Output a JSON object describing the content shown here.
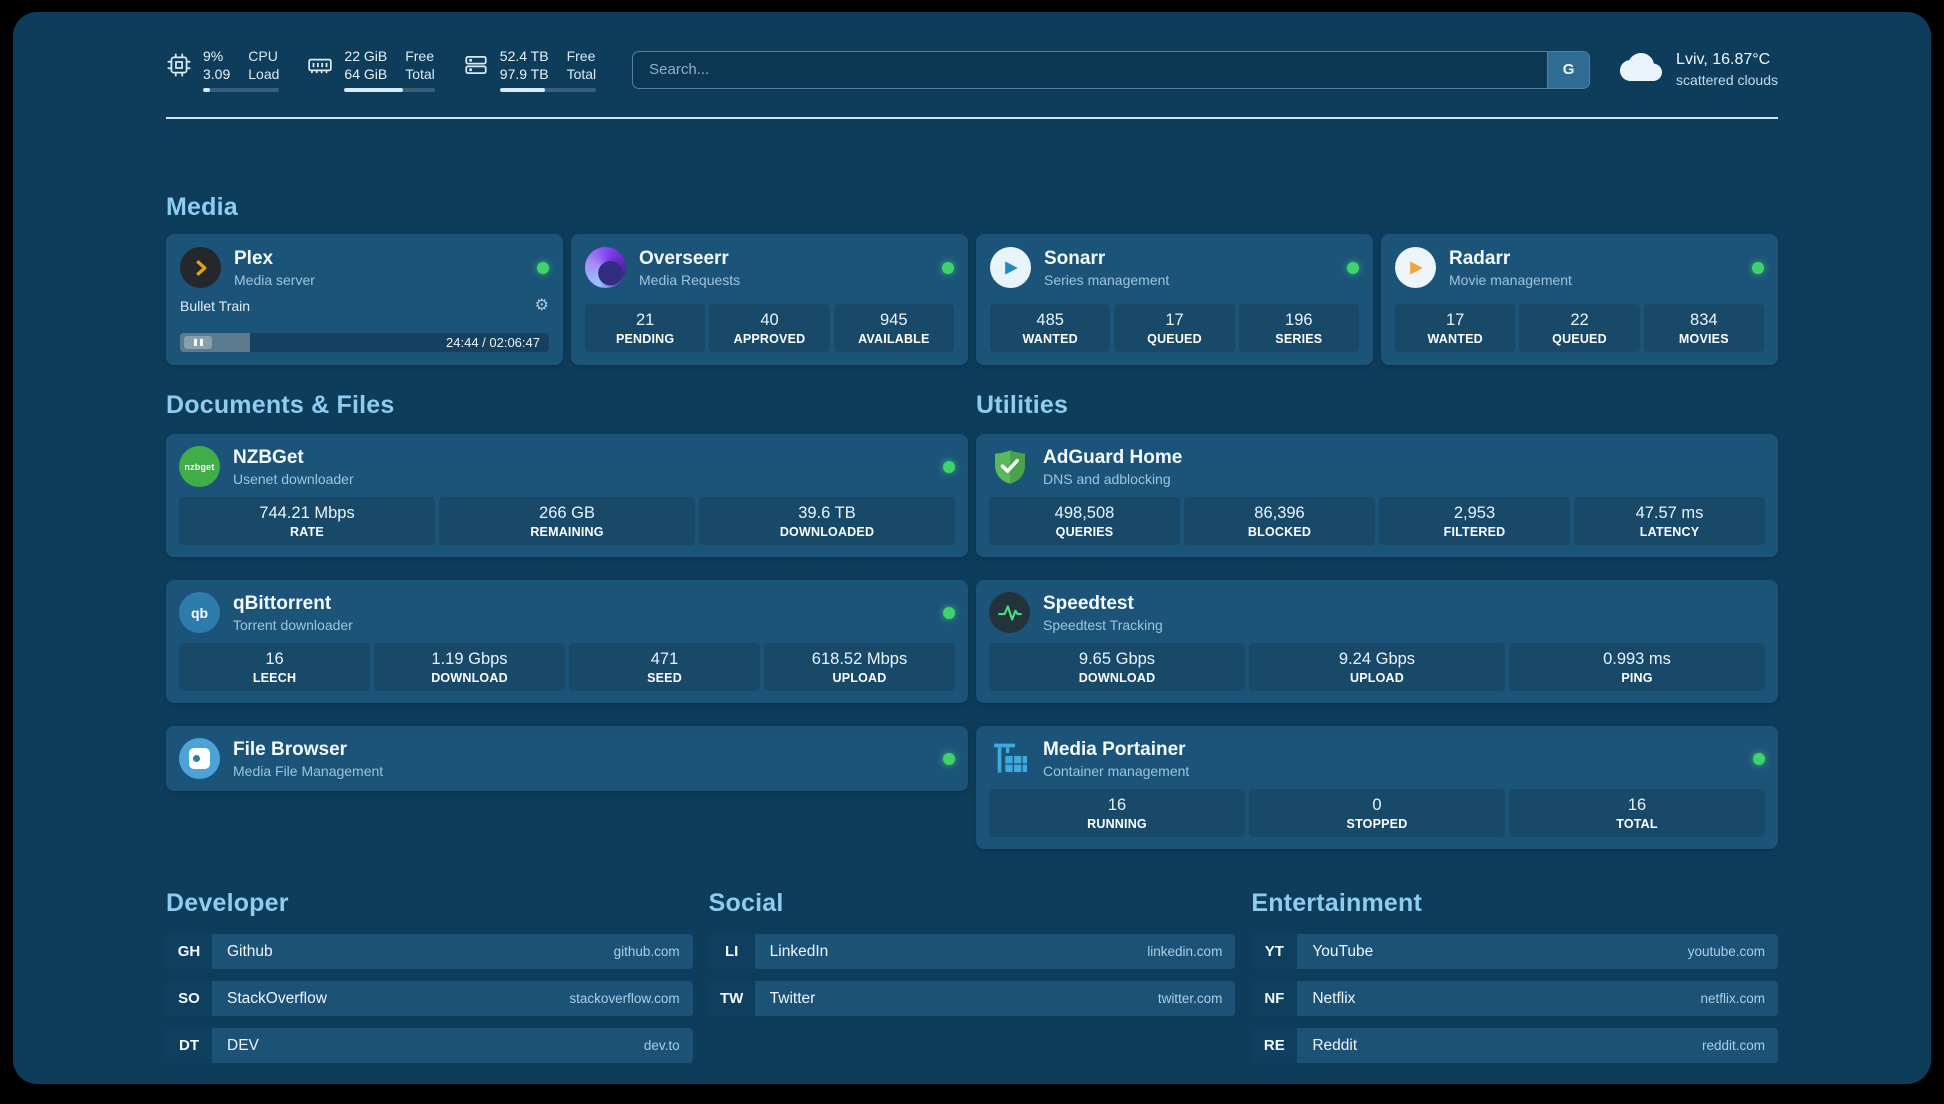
{
  "colors": {
    "background": "#0e3d5b",
    "card": "#1c5479",
    "accent": "#8ecdf0",
    "status_ok": "#3fd36c"
  },
  "topbar": {
    "stats": [
      {
        "icon": "cpu-icon",
        "value_a": "9%",
        "label_a": "CPU",
        "value_b": "3.09",
        "label_b": "Load",
        "progress_pct": 9
      },
      {
        "icon": "memory-icon",
        "value_a": "22 GiB",
        "label_a": "Free",
        "value_b": "64 GiB",
        "label_b": "Total",
        "progress_pct": 65
      },
      {
        "icon": "disk-icon",
        "value_a": "52.4 TB",
        "label_a": "Free",
        "value_b": "97.9 TB",
        "label_b": "Total",
        "progress_pct": 47
      }
    ],
    "search": {
      "placeholder": "Search...",
      "engine_button": "G"
    },
    "weather": {
      "icon": "cloud-icon",
      "location": "Lviv, 16.87°C",
      "condition": "scattered clouds"
    }
  },
  "media": {
    "heading": "Media",
    "plex": {
      "icon": "plex-icon",
      "title": "Plex",
      "subtitle": "Media server",
      "now_playing": "Bullet Train",
      "time": "24:44 / 02:06:47",
      "progress_pct": 19
    },
    "overseerr": {
      "icon": "overseerr-icon",
      "title": "Overseerr",
      "subtitle": "Media Requests",
      "stats": [
        {
          "value": "21",
          "label": "PENDING"
        },
        {
          "value": "40",
          "label": "APPROVED"
        },
        {
          "value": "945",
          "label": "AVAILABLE"
        }
      ]
    },
    "sonarr": {
      "icon": "sonarr-icon",
      "title": "Sonarr",
      "subtitle": "Series management",
      "stats": [
        {
          "value": "485",
          "label": "WANTED"
        },
        {
          "value": "17",
          "label": "QUEUED"
        },
        {
          "value": "196",
          "label": "SERIES"
        }
      ]
    },
    "radarr": {
      "icon": "radarr-icon",
      "title": "Radarr",
      "subtitle": "Movie management",
      "stats": [
        {
          "value": "17",
          "label": "WANTED"
        },
        {
          "value": "22",
          "label": "QUEUED"
        },
        {
          "value": "834",
          "label": "MOVIES"
        }
      ]
    }
  },
  "documents": {
    "heading": "Documents & Files",
    "nzbget": {
      "icon": "nzbget-icon",
      "icon_text": "nzbget",
      "title": "NZBGet",
      "subtitle": "Usenet downloader",
      "stats": [
        {
          "value": "744.21 Mbps",
          "label": "RATE"
        },
        {
          "value": "266 GB",
          "label": "REMAINING"
        },
        {
          "value": "39.6 TB",
          "label": "DOWNLOADED"
        }
      ]
    },
    "qbittorrent": {
      "icon": "qbittorrent-icon",
      "icon_text": "qb",
      "title": "qBittorrent",
      "subtitle": "Torrent downloader",
      "stats": [
        {
          "value": "16",
          "label": "LEECH"
        },
        {
          "value": "1.19 Gbps",
          "label": "DOWNLOAD"
        },
        {
          "value": "471",
          "label": "SEED"
        },
        {
          "value": "618.52 Mbps",
          "label": "UPLOAD"
        }
      ]
    },
    "filebrowser": {
      "icon": "filebrowser-icon",
      "title": "File Browser",
      "subtitle": "Media File Management"
    }
  },
  "utilities": {
    "heading": "Utilities",
    "adguard": {
      "icon": "adguard-shield-icon",
      "title": "AdGuard Home",
      "subtitle": "DNS and adblocking",
      "stats": [
        {
          "value": "498,508",
          "label": "QUERIES"
        },
        {
          "value": "86,396",
          "label": "BLOCKED"
        },
        {
          "value": "2,953",
          "label": "FILTERED"
        },
        {
          "value": "47.57 ms",
          "label": "LATENCY"
        }
      ]
    },
    "speedtest": {
      "icon": "speedtest-icon",
      "title": "Speedtest",
      "subtitle": "Speedtest Tracking",
      "stats": [
        {
          "value": "9.65 Gbps",
          "label": "DOWNLOAD"
        },
        {
          "value": "9.24 Gbps",
          "label": "UPLOAD"
        },
        {
          "value": "0.993 ms",
          "label": "PING"
        }
      ]
    },
    "portainer": {
      "icon": "portainer-crane-icon",
      "title": "Media Portainer",
      "subtitle": "Container management",
      "stats": [
        {
          "value": "16",
          "label": "RUNNING"
        },
        {
          "value": "0",
          "label": "STOPPED"
        },
        {
          "value": "16",
          "label": "TOTAL"
        }
      ]
    }
  },
  "bookmarks": {
    "developer": {
      "heading": "Developer",
      "items": [
        {
          "abbr": "GH",
          "name": "Github",
          "domain": "github.com"
        },
        {
          "abbr": "SO",
          "name": "StackOverflow",
          "domain": "stackoverflow.com"
        },
        {
          "abbr": "DT",
          "name": "DEV",
          "domain": "dev.to"
        }
      ]
    },
    "social": {
      "heading": "Social",
      "items": [
        {
          "abbr": "LI",
          "name": "LinkedIn",
          "domain": "linkedin.com"
        },
        {
          "abbr": "TW",
          "name": "Twitter",
          "domain": "twitter.com"
        }
      ]
    },
    "entertainment": {
      "heading": "Entertainment",
      "items": [
        {
          "abbr": "YT",
          "name": "YouTube",
          "domain": "youtube.com"
        },
        {
          "abbr": "NF",
          "name": "Netflix",
          "domain": "netflix.com"
        },
        {
          "abbr": "RE",
          "name": "Reddit",
          "domain": "reddit.com"
        }
      ]
    }
  }
}
